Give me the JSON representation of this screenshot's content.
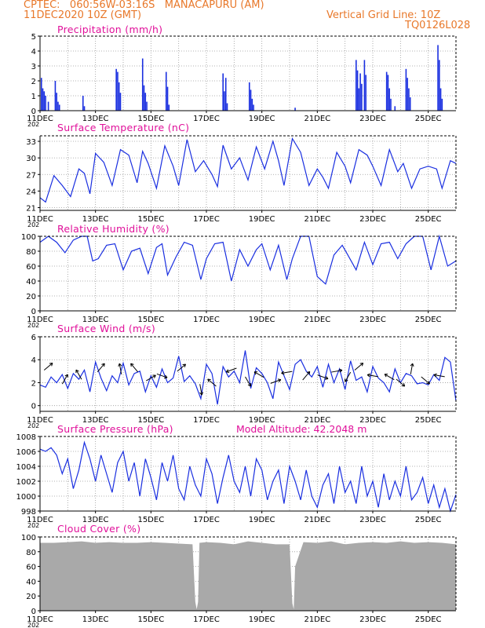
{
  "header": {
    "station_line": "CPTEC:   060:56W-03:16S   MANACAPURU (AM)",
    "date_line": "11DEC2020 10Z (GMT)",
    "grid_line": "Vertical Grid Line: 10Z",
    "code": "TQ0126L028",
    "model_altitude": "Model Altitude: 42.2048 m"
  },
  "colors": {
    "header": "#e8782a",
    "panel_title": "#e0109a",
    "series": "#1a2fe0",
    "cloud": "#a9a9a9",
    "axis": "#000000"
  },
  "x_ticks": [
    "11DEC",
    "13DEC",
    "15DEC",
    "17DEC",
    "19DEC",
    "21DEC",
    "23DEC",
    "25DEC"
  ],
  "x_tick_sub": "202",
  "chart_data": [
    {
      "id": "precip",
      "type": "bar",
      "title": "Precipitation (mm/h)",
      "x_range": [
        0,
        15
      ],
      "ylim": [
        0,
        5
      ],
      "yticks": [
        0,
        1,
        2,
        3,
        4,
        5
      ],
      "x": [
        0.05,
        0.1,
        0.15,
        0.2,
        0.3,
        0.55,
        0.6,
        0.65,
        0.7,
        1.55,
        1.6,
        2.75,
        2.8,
        2.85,
        2.9,
        3.7,
        3.75,
        3.8,
        3.85,
        4.55,
        4.6,
        4.65,
        6.6,
        6.65,
        6.7,
        6.75,
        7.55,
        7.6,
        7.65,
        7.7,
        9.2,
        11.4,
        11.45,
        11.5,
        11.55,
        11.6,
        11.7,
        11.75,
        12.5,
        12.55,
        12.6,
        12.65,
        12.8,
        13.2,
        13.25,
        13.3,
        13.35,
        14.35,
        14.4,
        14.45,
        14.5
      ],
      "values": [
        2.2,
        1.5,
        1.3,
        1.0,
        0.6,
        2.0,
        1.2,
        0.6,
        0.4,
        1.0,
        0.3,
        2.8,
        2.6,
        1.9,
        1.2,
        3.5,
        1.7,
        1.2,
        0.6,
        2.6,
        1.6,
        0.4,
        2.5,
        1.3,
        2.2,
        0.5,
        1.9,
        1.4,
        0.8,
        0.4,
        0.2,
        3.4,
        2.7,
        1.5,
        2.5,
        1.8,
        3.4,
        2.4,
        2.6,
        2.4,
        1.5,
        0.8,
        0.3,
        2.8,
        2.2,
        1.5,
        0.9,
        4.4,
        3.4,
        1.5,
        0.8
      ]
    },
    {
      "id": "temperature",
      "type": "line",
      "title": "Surface Temperature (nC)",
      "x_range": [
        0,
        15
      ],
      "ylim": [
        20.5,
        34
      ],
      "yticks": [
        21,
        24,
        27,
        30,
        33
      ],
      "x": [
        0,
        0.2,
        0.5,
        0.8,
        1.1,
        1.4,
        1.6,
        1.8,
        2.0,
        2.3,
        2.6,
        2.9,
        3.2,
        3.5,
        3.7,
        3.9,
        4.2,
        4.5,
        4.8,
        5.0,
        5.3,
        5.6,
        5.9,
        6.2,
        6.4,
        6.6,
        6.9,
        7.2,
        7.5,
        7.8,
        8.1,
        8.4,
        8.6,
        8.8,
        9.1,
        9.4,
        9.7,
        10.0,
        10.2,
        10.4,
        10.7,
        11.0,
        11.2,
        11.5,
        11.8,
        12.0,
        12.3,
        12.6,
        12.9,
        13.1,
        13.4,
        13.7,
        14.0,
        14.3,
        14.5,
        14.8,
        15.0
      ],
      "values": [
        22.8,
        22.0,
        26.8,
        25.0,
        23.0,
        28.0,
        27.2,
        23.5,
        30.8,
        29.2,
        25.0,
        31.5,
        30.5,
        25.5,
        31.2,
        29.0,
        24.5,
        32.2,
        28.5,
        25.0,
        33.3,
        27.5,
        29.5,
        27.0,
        24.8,
        32.3,
        28.0,
        30.0,
        26.0,
        32.0,
        28.0,
        33.0,
        29.5,
        25.0,
        33.5,
        31.0,
        25.0,
        28.0,
        26.5,
        24.5,
        31.0,
        28.5,
        25.5,
        31.5,
        30.5,
        28.5,
        25.0,
        31.5,
        27.5,
        29.0,
        24.5,
        28.0,
        28.5,
        28.0,
        24.5,
        29.5,
        29.0
      ]
    },
    {
      "id": "humidity",
      "type": "line",
      "title": "Relative Humidity (%)",
      "x_range": [
        0,
        15
      ],
      "ylim": [
        0,
        100
      ],
      "yticks": [
        0,
        20,
        40,
        60,
        80,
        100
      ],
      "x": [
        0,
        0.3,
        0.6,
        0.9,
        1.2,
        1.5,
        1.7,
        1.9,
        2.1,
        2.4,
        2.7,
        3.0,
        3.3,
        3.6,
        3.9,
        4.2,
        4.4,
        4.6,
        4.9,
        5.2,
        5.5,
        5.8,
        6.0,
        6.3,
        6.6,
        6.9,
        7.2,
        7.5,
        7.8,
        8.0,
        8.3,
        8.6,
        8.9,
        9.1,
        9.4,
        9.7,
        10.0,
        10.3,
        10.6,
        10.9,
        11.1,
        11.4,
        11.7,
        12.0,
        12.3,
        12.6,
        12.9,
        13.2,
        13.5,
        13.8,
        14.1,
        14.4,
        14.7,
        15.0
      ],
      "values": [
        92,
        100,
        92,
        78,
        95,
        100,
        100,
        67,
        70,
        88,
        90,
        55,
        80,
        84,
        50,
        85,
        90,
        48,
        72,
        92,
        88,
        42,
        70,
        90,
        92,
        40,
        82,
        60,
        82,
        90,
        55,
        88,
        42,
        70,
        100,
        100,
        46,
        36,
        75,
        88,
        75,
        55,
        92,
        62,
        90,
        92,
        70,
        90,
        100,
        100,
        55,
        100,
        60,
        67
      ]
    },
    {
      "id": "wind",
      "type": "line",
      "title": "Surface Wind (m/s)",
      "x_range": [
        0,
        15
      ],
      "ylim": [
        -0.5,
        6
      ],
      "yticks": [
        0,
        2,
        4,
        6
      ],
      "x": [
        0,
        0.2,
        0.4,
        0.6,
        0.8,
        1.0,
        1.2,
        1.4,
        1.6,
        1.8,
        2.0,
        2.2,
        2.4,
        2.6,
        2.8,
        3.0,
        3.2,
        3.4,
        3.6,
        3.8,
        4.0,
        4.2,
        4.4,
        4.6,
        4.8,
        5.0,
        5.2,
        5.4,
        5.6,
        5.8,
        6.0,
        6.2,
        6.4,
        6.6,
        6.8,
        7.0,
        7.2,
        7.4,
        7.6,
        7.8,
        8.0,
        8.2,
        8.4,
        8.6,
        8.8,
        9.0,
        9.2,
        9.4,
        9.6,
        9.8,
        10.0,
        10.2,
        10.4,
        10.6,
        10.8,
        11.0,
        11.2,
        11.4,
        11.6,
        11.8,
        12.0,
        12.2,
        12.4,
        12.6,
        12.8,
        13.0,
        13.2,
        13.4,
        13.6,
        13.8,
        14.0,
        14.2,
        14.4,
        14.6,
        14.8,
        15.0
      ],
      "values": [
        1.8,
        1.6,
        2.5,
        2.0,
        2.7,
        1.5,
        2.8,
        2.3,
        3.1,
        1.2,
        3.8,
        2.4,
        1.3,
        2.6,
        2.0,
        3.7,
        1.8,
        2.8,
        3.0,
        1.2,
        2.6,
        1.6,
        3.2,
        2.0,
        2.4,
        4.3,
        2.1,
        2.6,
        1.9,
        0.6,
        3.6,
        2.8,
        0.1,
        3.4,
        2.5,
        3.0,
        2.0,
        4.8,
        1.5,
        3.3,
        2.8,
        2.0,
        0.6,
        3.8,
        2.6,
        1.4,
        3.6,
        4.0,
        3.0,
        2.5,
        3.4,
        1.6,
        3.6,
        2.0,
        3.2,
        1.4,
        3.9,
        2.2,
        2.5,
        1.2,
        3.4,
        2.4,
        2.0,
        1.2,
        3.2,
        2.0,
        2.8,
        2.6,
        1.9,
        2.0,
        1.8,
        2.7,
        2.2,
        4.2,
        3.8,
        0.4
      ]
    },
    {
      "id": "pressure",
      "type": "line",
      "title": "Surface Pressure (hPa)",
      "x_range": [
        0,
        15
      ],
      "ylim": [
        998,
        1008
      ],
      "yticks": [
        998,
        1000,
        1002,
        1004,
        1006,
        1008
      ],
      "x": [
        0,
        0.2,
        0.4,
        0.6,
        0.8,
        1.0,
        1.2,
        1.4,
        1.6,
        1.8,
        2.0,
        2.2,
        2.4,
        2.6,
        2.8,
        3.0,
        3.2,
        3.4,
        3.6,
        3.8,
        4.0,
        4.2,
        4.4,
        4.6,
        4.8,
        5.0,
        5.2,
        5.4,
        5.6,
        5.8,
        6.0,
        6.2,
        6.4,
        6.6,
        6.8,
        7.0,
        7.2,
        7.4,
        7.6,
        7.8,
        8.0,
        8.2,
        8.4,
        8.6,
        8.8,
        9.0,
        9.2,
        9.4,
        9.6,
        9.8,
        10.0,
        10.2,
        10.4,
        10.6,
        10.8,
        11.0,
        11.2,
        11.4,
        11.6,
        11.8,
        12.0,
        12.2,
        12.4,
        12.6,
        12.8,
        13.0,
        13.2,
        13.4,
        13.6,
        13.8,
        14.0,
        14.2,
        14.4,
        14.6,
        14.8,
        15.0
      ],
      "values": [
        1006.3,
        1006.0,
        1006.5,
        1005.5,
        1003.0,
        1005.0,
        1001.0,
        1003.5,
        1007.2,
        1005.0,
        1002.0,
        1005.5,
        1003.0,
        1000.5,
        1004.5,
        1006.0,
        1002.0,
        1004.5,
        1000.0,
        1005.0,
        1002.5,
        999.5,
        1004.5,
        1002.0,
        1005.5,
        1001.0,
        999.5,
        1004.0,
        1001.5,
        1000.0,
        1005.0,
        1003.0,
        999.0,
        1002.5,
        1005.5,
        1002.0,
        1000.5,
        1004.0,
        1000.0,
        1005.0,
        1003.5,
        999.5,
        1002.0,
        1003.5,
        999.0,
        1004.0,
        1002.0,
        999.5,
        1003.5,
        1000.0,
        998.5,
        1001.5,
        1003.0,
        999.0,
        1004.0,
        1000.5,
        1002.0,
        999.0,
        1004.0,
        1000.0,
        1002.0,
        998.5,
        1003.0,
        999.5,
        1002.0,
        1000.0,
        1004.0,
        999.5,
        1000.5,
        1002.5,
        999.0,
        1001.5,
        998.5,
        1001.0,
        998.0,
        1000.2
      ]
    },
    {
      "id": "cloud",
      "type": "area",
      "title": "Cloud Cover (%)",
      "x_range": [
        0,
        15
      ],
      "ylim": [
        0,
        100
      ],
      "yticks": [
        0,
        20,
        40,
        60,
        80,
        100
      ],
      "x": [
        0,
        0.5,
        1.0,
        1.5,
        2.0,
        2.5,
        3.0,
        3.5,
        4.0,
        4.5,
        5.0,
        5.5,
        5.6,
        5.65,
        5.7,
        5.75,
        6.0,
        6.5,
        7.0,
        7.5,
        8.0,
        8.5,
        9.0,
        9.1,
        9.15,
        9.2,
        9.5,
        10.0,
        10.5,
        11.0,
        11.5,
        12.0,
        12.5,
        13.0,
        13.5,
        14.0,
        14.5,
        15.0
      ],
      "values": [
        92,
        92,
        93,
        94,
        92,
        93,
        92,
        92,
        93,
        92,
        91,
        90,
        12,
        2,
        12,
        92,
        93,
        92,
        90,
        94,
        92,
        90,
        90,
        10,
        2,
        60,
        93,
        92,
        94,
        90,
        92,
        93,
        92,
        94,
        92,
        93,
        92,
        90
      ]
    }
  ]
}
